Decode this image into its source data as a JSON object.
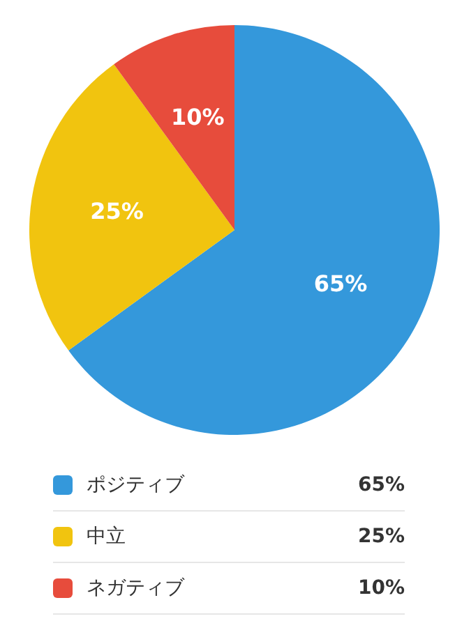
{
  "chart_data": {
    "type": "pie",
    "categories": [
      "ポジティブ",
      "中立",
      "ネガティブ"
    ],
    "values": [
      65,
      25,
      10
    ],
    "colors": [
      "#3498db",
      "#f1c40f",
      "#e74c3c"
    ],
    "value_labels": [
      "65%",
      "25%",
      "10%"
    ],
    "legend": "bottom"
  }
}
